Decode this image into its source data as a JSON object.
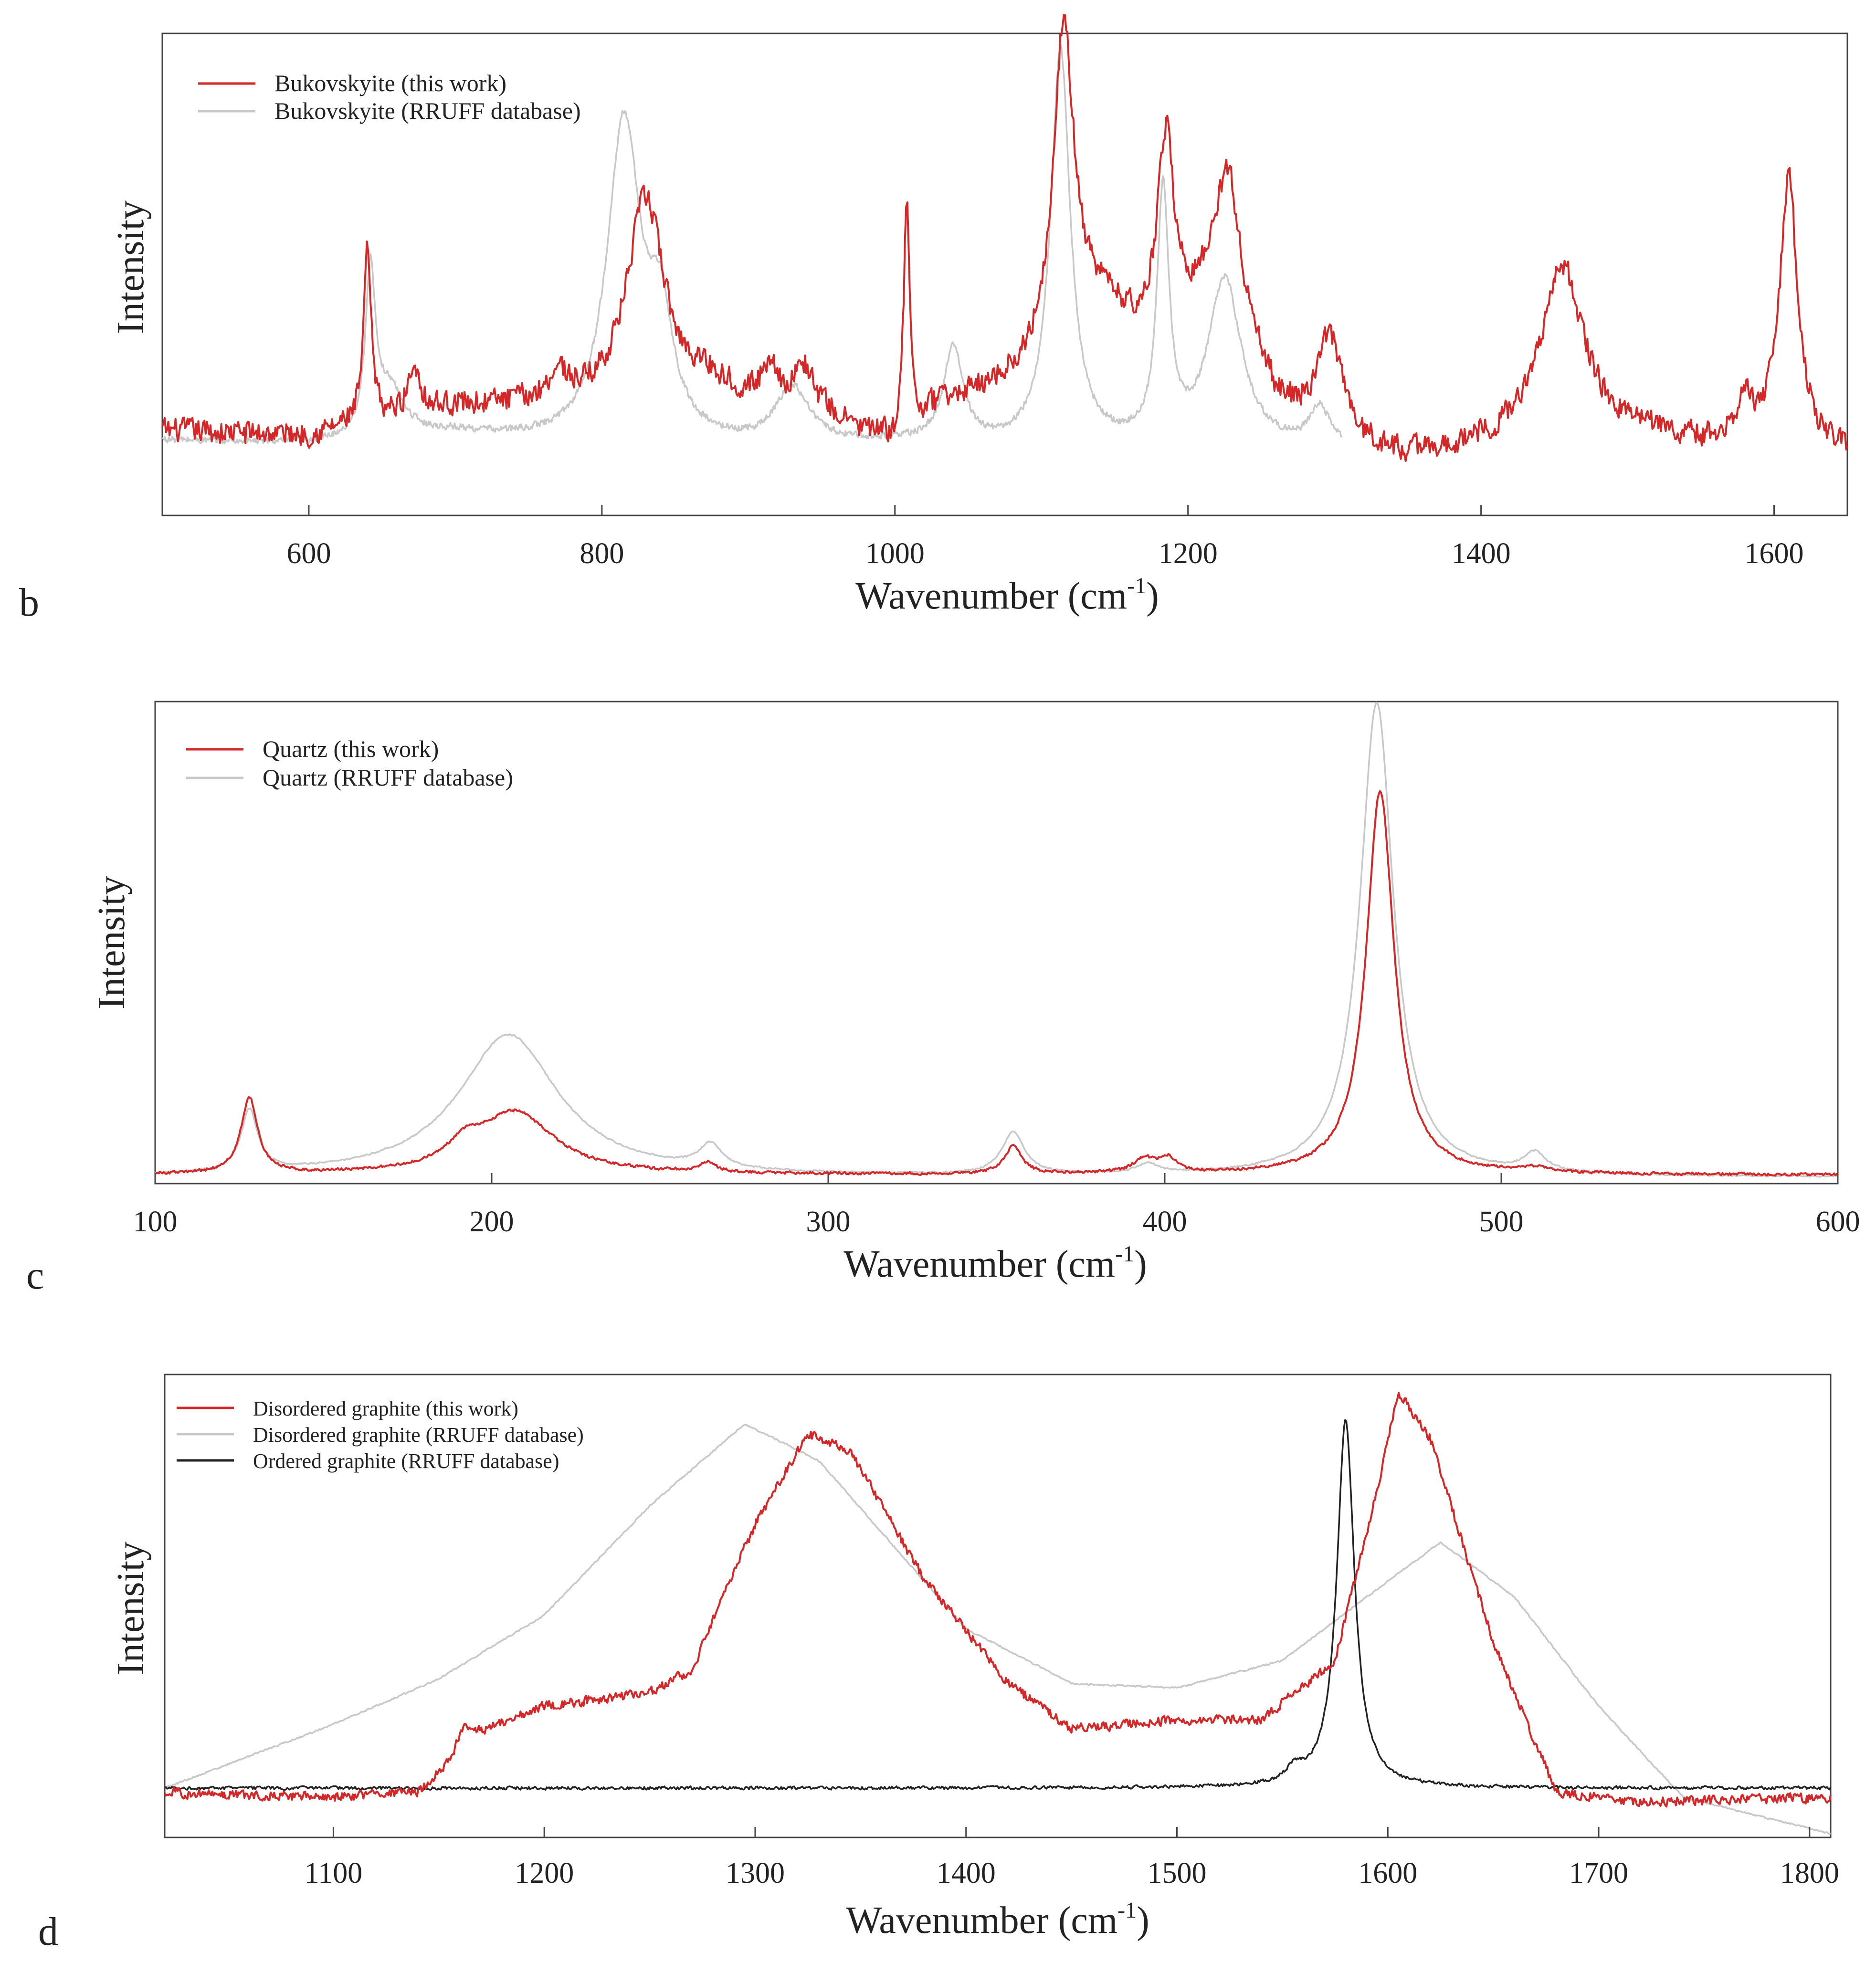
{
  "figure": {
    "panels": [
      {
        "letter": "b",
        "xlabel_main": "Wavenumber (cm",
        "xlabel_sup": "-1",
        "xlabel_close": ")",
        "ylabel": "Intensity"
      },
      {
        "letter": "c",
        "xlabel_main": "Wavenumber (cm",
        "xlabel_sup": "-1",
        "xlabel_close": ")",
        "ylabel": "Intensity"
      },
      {
        "letter": "d",
        "xlabel_main": "Wavenumber (cm",
        "xlabel_sup": "-1",
        "xlabel_close": ")",
        "ylabel": "Intensity"
      }
    ]
  },
  "chart_data": [
    {
      "type": "line",
      "panel": "b",
      "title": "",
      "xlabel": "Wavenumber (cm-1)",
      "ylabel": "Intensity",
      "xlim": [
        500,
        1650
      ],
      "ylim": [
        0,
        100
      ],
      "xticks": [
        600,
        800,
        1000,
        1200,
        1400,
        1600
      ],
      "grid": false,
      "legend_position": "top-left",
      "series": [
        {
          "name": "Bukovskyite (this work)",
          "color": "#d62728",
          "noise": 2.2,
          "baseline": [
            [
              500,
              17
            ],
            [
              600,
              16
            ],
            [
              630,
              18
            ],
            [
              700,
              22
            ],
            [
              760,
              22
            ],
            [
              800,
              22
            ],
            [
              850,
              22
            ],
            [
              870,
              26
            ],
            [
              900,
              23
            ],
            [
              950,
              20
            ],
            [
              980,
              16
            ],
            [
              1000,
              14
            ],
            [
              1030,
              22
            ],
            [
              1060,
              25
            ],
            [
              1080,
              27
            ],
            [
              1100,
              30
            ],
            [
              1140,
              42
            ],
            [
              1170,
              36
            ],
            [
              1190,
              37
            ],
            [
              1220,
              46
            ],
            [
              1260,
              22
            ],
            [
              1300,
              14
            ],
            [
              1350,
              11
            ],
            [
              1400,
              13
            ],
            [
              1430,
              14
            ],
            [
              1500,
              16
            ],
            [
              1550,
              14
            ],
            [
              1600,
              16
            ],
            [
              1650,
              12
            ]
          ],
          "peaks": [
            [
              640,
              36,
              3
            ],
            [
              672,
              10,
              5
            ],
            [
              770,
              6,
              8
            ],
            [
              830,
              44,
              16
            ],
            [
              915,
              8,
              6
            ],
            [
              938,
              9,
              8
            ],
            [
              1008,
              47,
              2.5
            ],
            [
              1115,
              68,
              9
            ],
            [
              1185,
              42,
              7
            ],
            [
              1228,
              28,
              10
            ],
            [
              1297,
              22,
              10
            ],
            [
              1455,
              37,
              18
            ],
            [
              1580,
              8,
              5
            ],
            [
              1610,
              55,
              7
            ]
          ]
        },
        {
          "name": "Bukovskyite (RRUFF database)",
          "color": "#c8c8c8",
          "noise": 0.6,
          "xrange": [
            500,
            1305
          ],
          "baseline": [
            [
              500,
              15
            ],
            [
              600,
              14
            ],
            [
              700,
              16
            ],
            [
              760,
              14
            ],
            [
              790,
              13
            ],
            [
              900,
              13
            ],
            [
              1000,
              14
            ],
            [
              1080,
              13
            ],
            [
              1100,
              14
            ],
            [
              1200,
              12
            ],
            [
              1300,
              13
            ]
          ],
          "peaks": [
            [
              642,
              34,
              4
            ],
            [
              655,
              10,
              12
            ],
            [
              815,
              68,
              14
            ],
            [
              840,
              22,
              10
            ],
            [
              930,
              12,
              14
            ],
            [
              1040,
              20,
              8
            ],
            [
              1113,
              83,
              8
            ],
            [
              1183,
              53,
              5
            ],
            [
              1225,
              36,
              14
            ],
            [
              1290,
              8,
              8
            ]
          ]
        }
      ]
    },
    {
      "type": "line",
      "panel": "c",
      "title": "",
      "xlabel": "Wavenumber (cm-1)",
      "ylabel": "Intensity",
      "xlim": [
        100,
        600
      ],
      "ylim": [
        0,
        100
      ],
      "xticks": [
        100,
        200,
        300,
        400,
        500,
        600
      ],
      "grid": false,
      "legend_position": "top-left",
      "series": [
        {
          "name": "Quartz (this work)",
          "color": "#d62728",
          "noise": 0.25,
          "baseline": [
            [
              100,
              1
            ],
            [
              600,
              1
            ]
          ],
          "peaks": [
            [
              128,
              16,
              3
            ],
            [
              192,
              4,
              6
            ],
            [
              207,
              13,
              14
            ],
            [
              264,
              2,
              3
            ],
            [
              355,
              6,
              3
            ],
            [
              394,
              3,
              4
            ],
            [
              401,
              3,
              3
            ],
            [
              464,
              81,
              5
            ],
            [
              510,
              1,
              5
            ]
          ]
        },
        {
          "name": "Quartz (RRUFF database)",
          "color": "#c8c8c8",
          "noise": 0.15,
          "baseline": [
            [
              100,
              0.5
            ],
            [
              600,
              0.5
            ]
          ],
          "peaks": [
            [
              128,
              13,
              3
            ],
            [
              205,
              30,
              18
            ],
            [
              265,
              5,
              4
            ],
            [
              355,
              9,
              4
            ],
            [
              395,
              2,
              4
            ],
            [
              463,
              100,
              6
            ],
            [
              510,
              4,
              4
            ]
          ]
        }
      ]
    },
    {
      "type": "line",
      "panel": "d",
      "title": "",
      "xlabel": "Wavenumber (cm-1)",
      "ylabel": "Intensity",
      "xlim": [
        1020,
        1810
      ],
      "ylim": [
        0,
        100
      ],
      "xticks": [
        1100,
        1200,
        1300,
        1400,
        1500,
        1600,
        1700,
        1800
      ],
      "grid": false,
      "legend_position": "top-left",
      "series": [
        {
          "name": "Disordered graphite (this work)",
          "color": "#d62728",
          "noise": 0.9,
          "baseline": [
            [
              1020,
              9
            ],
            [
              1100,
              8
            ],
            [
              1140,
              9
            ],
            [
              1170,
              22
            ],
            [
              1200,
              28
            ],
            [
              1250,
              31
            ],
            [
              1270,
              36
            ],
            [
              1300,
              68
            ],
            [
              1325,
              88
            ],
            [
              1345,
              84
            ],
            [
              1380,
              56
            ],
            [
              1420,
              33
            ],
            [
              1450,
              23
            ],
            [
              1500,
              25
            ],
            [
              1540,
              25
            ],
            [
              1575,
              38
            ],
            [
              1595,
              76
            ],
            [
              1605,
              97
            ],
            [
              1620,
              87
            ],
            [
              1650,
              42
            ],
            [
              1680,
              9
            ],
            [
              1720,
              7
            ],
            [
              1810,
              8
            ]
          ],
          "peaks": [
            [
              1162,
              5,
              4
            ]
          ]
        },
        {
          "name": "Disordered graphite (RRUFF database)",
          "color": "#c8c8c8",
          "noise": 0.15,
          "baseline": [
            [
              1020,
              10
            ],
            [
              1100,
              24
            ],
            [
              1150,
              34
            ],
            [
              1200,
              48
            ],
            [
              1250,
              72
            ],
            [
              1295,
              90
            ],
            [
              1330,
              82
            ],
            [
              1400,
              45
            ],
            [
              1450,
              33
            ],
            [
              1500,
              32
            ],
            [
              1550,
              38
            ],
            [
              1590,
              52
            ],
            [
              1625,
              64
            ],
            [
              1660,
              52
            ],
            [
              1700,
              28
            ],
            [
              1740,
              8
            ],
            [
              1810,
              0
            ]
          ],
          "peaks": []
        },
        {
          "name": "Ordered graphite (RRUFF database)",
          "color": "#222222",
          "noise": 0.3,
          "baseline": [
            [
              1020,
              10
            ],
            [
              1810,
              10
            ]
          ],
          "peaks": [
            [
              1580,
              81,
              5
            ],
            [
              1556,
              3,
              5
            ]
          ]
        }
      ]
    }
  ]
}
